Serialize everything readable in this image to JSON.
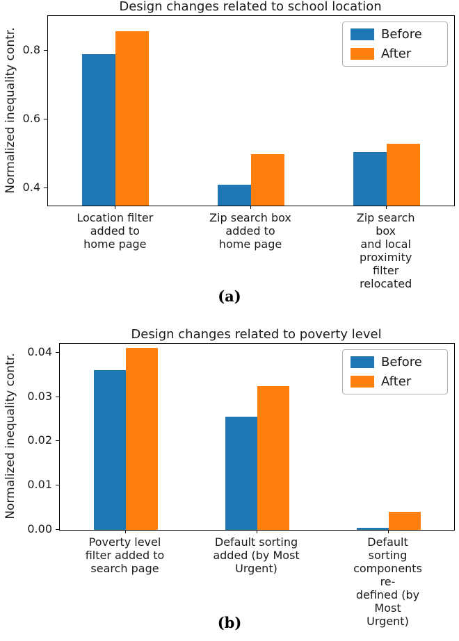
{
  "figure": {
    "sublabels": [
      "(a)",
      "(b)"
    ]
  },
  "colors": {
    "before": "#1f77b4",
    "after": "#ff7f0e",
    "spine": "#000000",
    "text": "#1a1a1a"
  },
  "chart_data": [
    {
      "type": "bar",
      "title": "Design changes related to school location",
      "ylabel": "Normalized inequality contr.",
      "xlabel": "",
      "categories": [
        "Location filter\nadded to\nhome page",
        "Zip search box\nadded to\nhome page",
        "Zip search box\nand local\nproximity filter\nrelocated"
      ],
      "series": [
        {
          "name": "Before",
          "color": "#1f77b4",
          "values": [
            0.79,
            0.41,
            0.505
          ]
        },
        {
          "name": "After",
          "color": "#ff7f0e",
          "values": [
            0.855,
            0.5,
            0.53
          ]
        }
      ],
      "ylim": [
        0.35,
        0.9
      ],
      "yticks": [
        0.4,
        0.6,
        0.8
      ],
      "ytick_labels": [
        "0.4",
        "0.6",
        "0.8"
      ],
      "grid": false,
      "legend": {
        "position": "upper right",
        "entries": [
          "Before",
          "After"
        ]
      }
    },
    {
      "type": "bar",
      "title": "Design changes related to poverty level",
      "ylabel": "Normalized inequality contr.",
      "xlabel": "",
      "categories": [
        "Poverty level\nfilter added to\nsearch page",
        "Default sorting\nadded (by Most\nUrgent)",
        "Default sorting\ncomponents re-\ndefined (by\nMost Urgent)"
      ],
      "series": [
        {
          "name": "Before",
          "color": "#1f77b4",
          "values": [
            0.036,
            0.0255,
            0.0005
          ]
        },
        {
          "name": "After",
          "color": "#ff7f0e",
          "values": [
            0.041,
            0.0325,
            0.004
          ]
        }
      ],
      "ylim": [
        0,
        0.042
      ],
      "yticks": [
        0,
        0.01,
        0.02,
        0.03,
        0.04
      ],
      "ytick_labels": [
        "0.00",
        "0.01",
        "0.02",
        "0.03",
        "0.04"
      ],
      "grid": false,
      "legend": {
        "position": "upper right",
        "entries": [
          "Before",
          "After"
        ]
      }
    }
  ]
}
